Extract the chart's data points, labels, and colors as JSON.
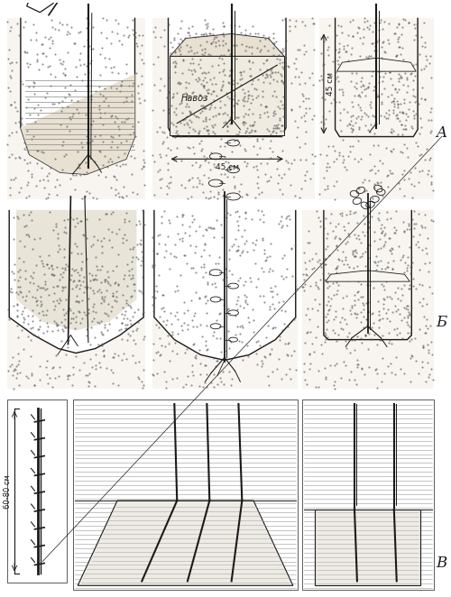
{
  "bg_color": "#ffffff",
  "line_color": "#1a1a1a",
  "label_A": "A",
  "label_B": "Б",
  "label_V": "В",
  "text_navoz": "Навоз",
  "text_45cm_h": "45 см",
  "text_45cm_w": "45 см",
  "text_6080": "60-80 см",
  "dot_color": "#555555",
  "soil_bg": "#f8f5f0"
}
